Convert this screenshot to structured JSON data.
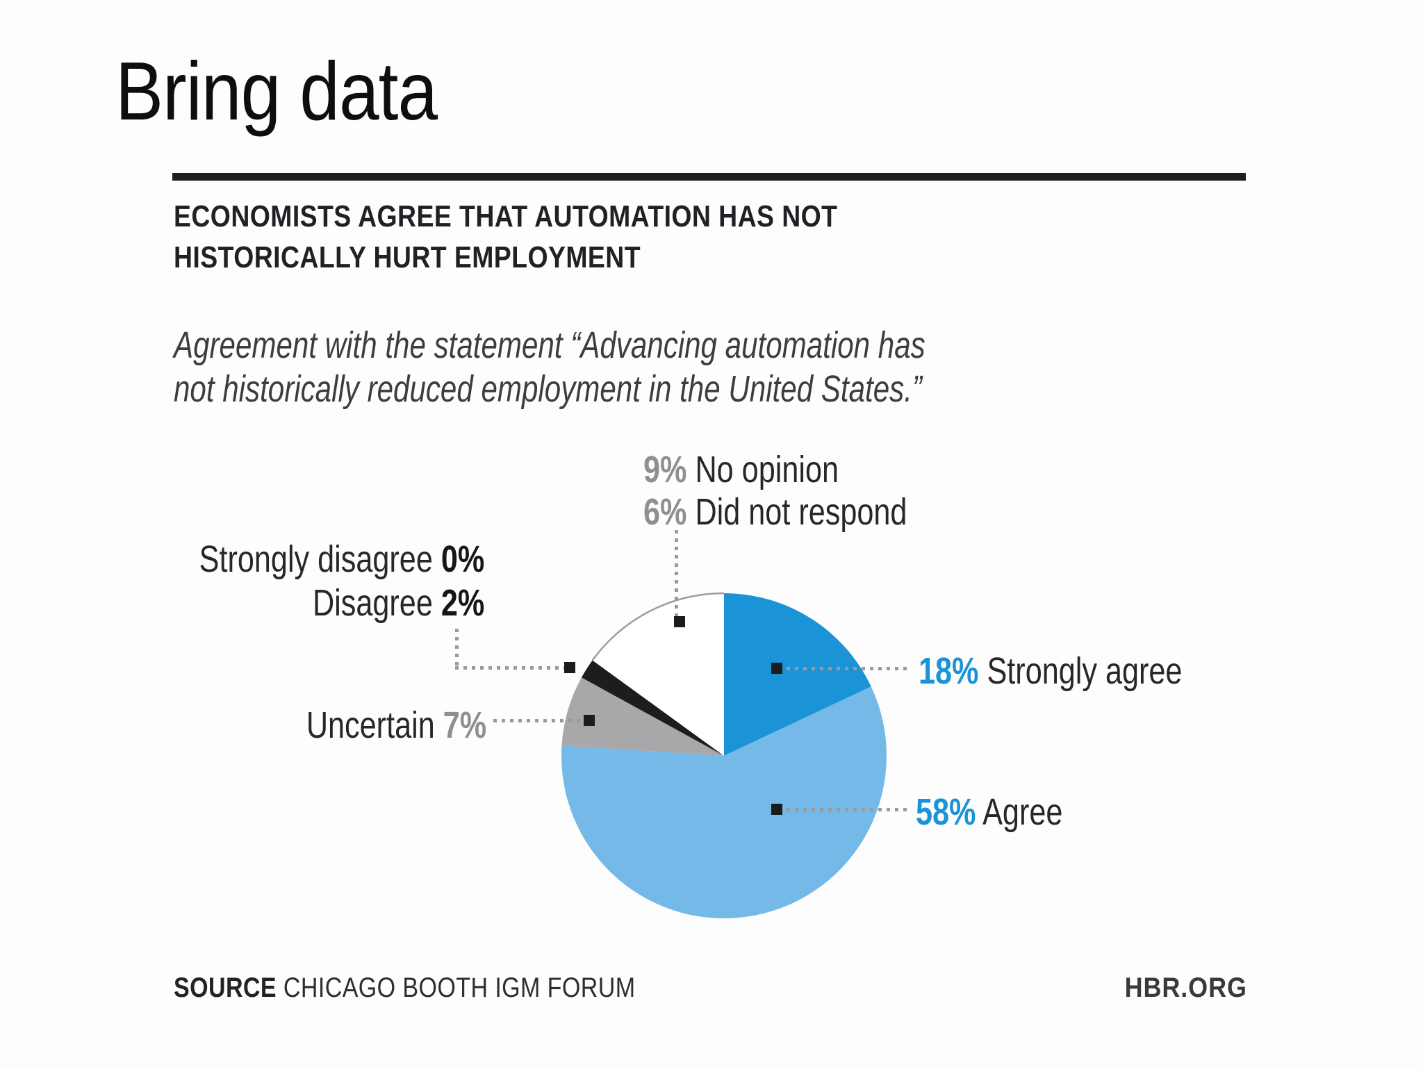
{
  "slide": {
    "title": "Bring data"
  },
  "chart": {
    "headline_lines": [
      "ECONOMISTS AGREE THAT AUTOMATION HAS NOT",
      "HISTORICALLY HURT EMPLOYMENT"
    ],
    "subtitle_lines": [
      "Agreement with the statement “Advancing automation has",
      "not historically reduced employment in the United States.”"
    ],
    "source_label": "SOURCE",
    "source_text": "CHICAGO BOOTH IGM FORUM",
    "brand": "HBR.ORG"
  },
  "labels": {
    "no_opinion": {
      "pct": "9%",
      "text": "No opinion"
    },
    "did_not_respond": {
      "pct": "6%",
      "text": "Did not respond"
    },
    "strongly_disagree": {
      "text": "Strongly disagree",
      "pct": "0%"
    },
    "disagree": {
      "text": "Disagree",
      "pct": "2%"
    },
    "uncertain": {
      "text": "Uncertain",
      "pct": "7%"
    },
    "strongly_agree": {
      "pct": "18%",
      "text": "Strongly agree"
    },
    "agree": {
      "pct": "58%",
      "text": "Agree"
    }
  },
  "colors": {
    "strongly_agree_blue": "#1a93d7",
    "agree_light_blue": "#74b9e8",
    "uncertain_gray": "#a8a8aa",
    "disagree_black": "#1d1d1f",
    "white_slice": "#ffffff",
    "white_slice_outline": "#9e9e9e",
    "leader_gray": "#9a9a9c",
    "pct_gray": "#8f8f92"
  },
  "chart_data": {
    "type": "pie",
    "title": "ECONOMISTS AGREE THAT AUTOMATION HAS NOT HISTORICALLY HURT EMPLOYMENT",
    "subtitle": "Agreement with the statement “Advancing automation has not historically reduced employment in the United States.”",
    "unit": "%",
    "start_angle_deg": 0,
    "direction": "clockwise",
    "slices": [
      {
        "label": "Strongly agree",
        "value": 18,
        "color": "#1a93d7"
      },
      {
        "label": "Agree",
        "value": 58,
        "color": "#74b9e8"
      },
      {
        "label": "Uncertain",
        "value": 7,
        "color": "#a8a8aa"
      },
      {
        "label": "Disagree",
        "value": 2,
        "color": "#1d1d1f"
      },
      {
        "label": "Strongly disagree",
        "value": 0,
        "color": "#1d1d1f"
      },
      {
        "label": "No opinion",
        "value": 9,
        "color": "#ffffff",
        "outlined": true
      },
      {
        "label": "Did not respond",
        "value": 6,
        "color": "#ffffff",
        "outlined": true
      }
    ],
    "source": "SOURCE CHICAGO BOOTH IGM FORUM",
    "credit": "HBR.ORG"
  }
}
